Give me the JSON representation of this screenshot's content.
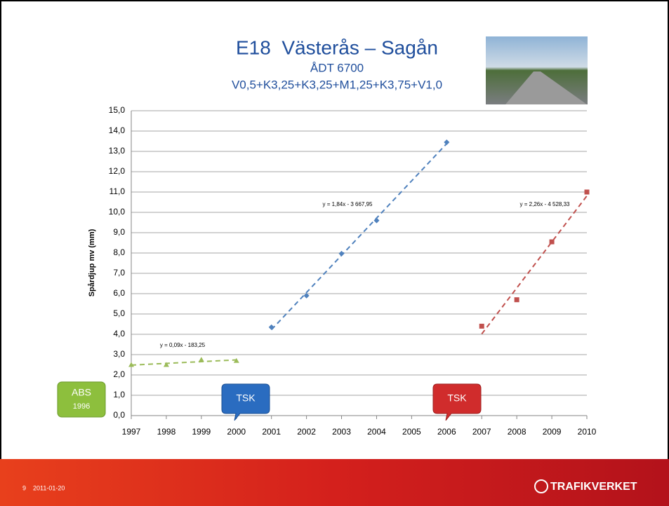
{
  "chart_data": {
    "type": "scatter",
    "title": "E18  Västerås – Sagån",
    "subtitle": [
      "ÅDT 6700",
      "V0,5+K3,25+K3,25+M1,25+K3,75+V1,0"
    ],
    "y_label": "Spårdjup mv (mm)",
    "xlim": [
      1997,
      2010
    ],
    "xticks": [
      1997,
      1998,
      1999,
      2000,
      2001,
      2002,
      2003,
      2004,
      2005,
      2006,
      2007,
      2008,
      2009,
      2010
    ],
    "ylim": [
      0,
      15
    ],
    "yticks": [
      {
        "value": 0,
        "label": "0,0"
      },
      {
        "value": 1,
        "label": "1,0"
      },
      {
        "value": 2,
        "label": "2,0"
      },
      {
        "value": 3,
        "label": "3,0"
      },
      {
        "value": 4,
        "label": "4,0"
      },
      {
        "value": 5,
        "label": "5,0"
      },
      {
        "value": 6,
        "label": "6,0"
      },
      {
        "value": 7,
        "label": "7,0"
      },
      {
        "value": 8,
        "label": "8,0"
      },
      {
        "value": 9,
        "label": "9,0"
      },
      {
        "value": 10,
        "label": "10,0"
      },
      {
        "value": 11,
        "label": "11,0"
      },
      {
        "value": 12,
        "label": "12,0"
      },
      {
        "value": 13,
        "label": "13,0"
      },
      {
        "value": 14,
        "label": "14,0"
      },
      {
        "value": 15,
        "label": "15,0"
      }
    ],
    "grid": true,
    "series": [
      {
        "color": "#9bbb59",
        "marker": "triangle",
        "x": [
          1997,
          1998,
          1999,
          2000
        ],
        "values": [
          2.5,
          2.5,
          2.75,
          2.7
        ],
        "trendline": "y = 0,09x - 183,25"
      },
      {
        "color": "#4f81bd",
        "marker": "diamond",
        "x": [
          2001,
          2002,
          2003,
          2004,
          2006
        ],
        "values": [
          4.35,
          5.9,
          7.97,
          9.6,
          13.45
        ],
        "trendline": "y = 1,84x - 3 667,95"
      },
      {
        "color": "#c0504d",
        "marker": "square",
        "x": [
          2007,
          2008,
          2009,
          2010
        ],
        "values": [
          4.4,
          5.7,
          8.55,
          11.0
        ],
        "trendline": "y = 2,26x - 4 528,33"
      }
    ]
  },
  "slide": {
    "callouts": [
      {
        "label": "ABS",
        "sublabel": "1996"
      },
      {
        "label": "TSK"
      },
      {
        "label": "TSK"
      }
    ],
    "page": "9",
    "date": "2011-01-20",
    "logo": "TRAFIKVERKET"
  }
}
